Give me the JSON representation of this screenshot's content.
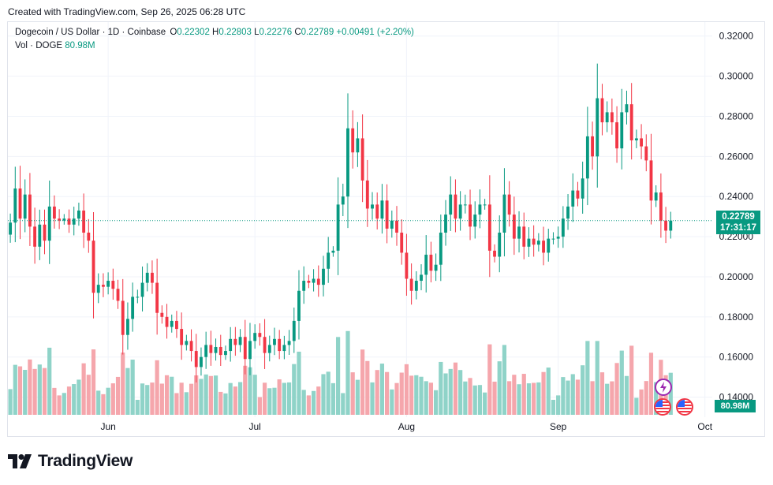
{
  "header": {
    "created_text": "Created with TradingView.com, Sep 26, 2025 06:28 UTC"
  },
  "legend": {
    "symbol": "Dogecoin / US Dollar · 1D · Coinbase",
    "o_label": "O",
    "o_value": "0.22302",
    "h_label": "H",
    "h_value": "0.22803",
    "l_label": "L",
    "l_value": "0.22276",
    "c_label": "C",
    "c_value": "0.22789",
    "change": "+0.00491 (+2.20%)",
    "vol_label": "Vol · DOGE",
    "vol_value": "80.98M"
  },
  "price_scale": {
    "current_price": "0.22789",
    "countdown": "17:31:17",
    "current_volume": "80.98M"
  },
  "colors": {
    "up": "#089981",
    "down": "#f23645",
    "up_vol": "#8fd3c8",
    "down_vol": "#f5a6ac",
    "grid": "#f0f3fa"
  },
  "icons": {
    "logo": "tradingview-logo-icon",
    "events": [
      "lightning-event-icon",
      "us-flag-event-icon",
      "us-flag-event-icon"
    ]
  },
  "branding": {
    "logo_text": "TradingView"
  },
  "chart_data": {
    "type": "candlestick",
    "title": "Dogecoin / US Dollar · 1D · Coinbase",
    "y_ticks": [
      "0.32000",
      "0.30000",
      "0.28000",
      "0.26000",
      "0.24000",
      "0.22000",
      "0.20000",
      "0.18000",
      "0.16000",
      "0.14000"
    ],
    "ylim": [
      0.13,
      0.325
    ],
    "x_labels": [
      "Jun",
      "Jul",
      "Aug",
      "Sep",
      "Oct"
    ],
    "x_label_index": [
      20,
      50,
      81,
      112,
      142
    ],
    "x_range": [
      -0.5,
      143.5
    ],
    "start_date": "2025-05-12",
    "volume_max": 130,
    "closes": [
      0.227,
      0.244,
      0.229,
      0.241,
      0.225,
      0.215,
      0.226,
      0.218,
      0.235,
      0.229,
      0.228,
      0.229,
      0.226,
      0.229,
      0.233,
      0.222,
      0.218,
      0.192,
      0.196,
      0.195,
      0.198,
      0.194,
      0.188,
      0.171,
      0.179,
      0.19,
      0.19,
      0.197,
      0.202,
      0.197,
      0.182,
      0.18,
      0.175,
      0.178,
      0.174,
      0.166,
      0.168,
      0.163,
      0.155,
      0.16,
      0.166,
      0.162,
      0.165,
      0.161,
      0.163,
      0.169,
      0.166,
      0.17,
      0.159,
      0.168,
      0.172,
      0.17,
      0.162,
      0.166,
      0.169,
      0.163,
      0.166,
      0.168,
      0.178,
      0.193,
      0.198,
      0.197,
      0.199,
      0.196,
      0.204,
      0.212,
      0.213,
      0.236,
      0.24,
      0.274,
      0.262,
      0.269,
      0.248,
      0.234,
      0.236,
      0.229,
      0.238,
      0.224,
      0.228,
      0.222,
      0.212,
      0.199,
      0.193,
      0.198,
      0.201,
      0.211,
      0.203,
      0.206,
      0.222,
      0.231,
      0.241,
      0.229,
      0.236,
      0.236,
      0.225,
      0.231,
      0.236,
      0.236,
      0.213,
      0.21,
      0.222,
      0.241,
      0.231,
      0.219,
      0.225,
      0.215,
      0.219,
      0.216,
      0.218,
      0.212,
      0.219,
      0.219,
      0.22,
      0.229,
      0.235,
      0.243,
      0.239,
      0.249,
      0.27,
      0.26,
      0.289,
      0.277,
      0.282,
      0.277,
      0.264,
      0.282,
      0.286,
      0.268,
      0.269,
      0.265,
      0.258,
      0.238,
      0.242,
      0.228,
      0.223,
      0.228
    ]
  }
}
